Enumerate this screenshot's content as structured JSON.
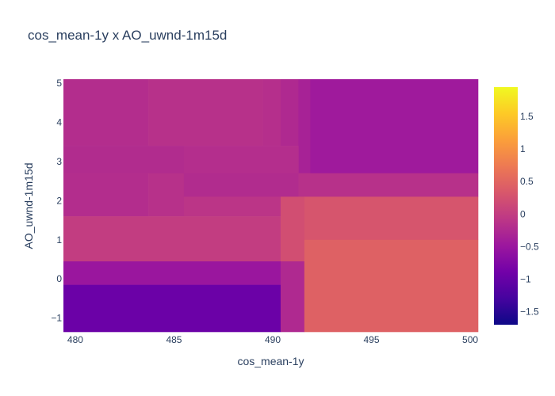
{
  "chart_data": {
    "type": "heatmap",
    "title": "cos_mean-1y x AO_uwnd-1m15d",
    "xlabel": "cos_mean-1y",
    "ylabel": "AO_uwnd-1m15d",
    "xlim": [
      479.4,
      500.4
    ],
    "ylim": [
      -1.35,
      5.1
    ],
    "x_ticks": [
      {
        "value": 480,
        "label": "480"
      },
      {
        "value": 485,
        "label": "485"
      },
      {
        "value": 490,
        "label": "490"
      },
      {
        "value": 495,
        "label": "495"
      },
      {
        "value": 500,
        "label": "500"
      }
    ],
    "y_ticks": [
      {
        "value": -1,
        "label": "−1"
      },
      {
        "value": 0,
        "label": "0"
      },
      {
        "value": 1,
        "label": "1"
      },
      {
        "value": 2,
        "label": "2"
      },
      {
        "value": 3,
        "label": "3"
      },
      {
        "value": 4,
        "label": "4"
      },
      {
        "value": 5,
        "label": "5"
      }
    ],
    "cells": [
      {
        "x": [
          479.4,
          483.7
        ],
        "y": [
          3.4,
          5.1
        ],
        "value": -0.2
      },
      {
        "x": [
          483.7,
          489.5
        ],
        "y": [
          3.4,
          5.1
        ],
        "value": -0.15
      },
      {
        "x": [
          489.5,
          490.4
        ],
        "y": [
          3.4,
          5.1
        ],
        "value": -0.18
      },
      {
        "x": [
          490.4,
          491.3
        ],
        "y": [
          3.4,
          5.1
        ],
        "value": -0.25
      },
      {
        "x": [
          491.3,
          491.9
        ],
        "y": [
          2.7,
          5.1
        ],
        "value": -0.35
      },
      {
        "x": [
          491.9,
          500.4
        ],
        "y": [
          2.7,
          5.1
        ],
        "value": -0.45
      },
      {
        "x": [
          479.4,
          485.5
        ],
        "y": [
          2.7,
          3.4
        ],
        "value": -0.22
      },
      {
        "x": [
          485.5,
          491.3
        ],
        "y": [
          2.7,
          3.4
        ],
        "value": -0.19
      },
      {
        "x": [
          479.4,
          483.7
        ],
        "y": [
          1.6,
          2.7
        ],
        "value": -0.2
      },
      {
        "x": [
          483.7,
          485.5
        ],
        "y": [
          1.6,
          2.7
        ],
        "value": -0.15
      },
      {
        "x": [
          485.5,
          491.3
        ],
        "y": [
          2.1,
          2.7
        ],
        "value": -0.22
      },
      {
        "x": [
          491.3,
          500.4
        ],
        "y": [
          2.1,
          2.7
        ],
        "value": -0.15
      },
      {
        "x": [
          485.5,
          490.4
        ],
        "y": [
          1.6,
          2.1
        ],
        "value": -0.1
      },
      {
        "x": [
          479.4,
          490.4
        ],
        "y": [
          0.45,
          1.6
        ],
        "value": 0.0
      },
      {
        "x": [
          490.4,
          491.6
        ],
        "y": [
          0.45,
          2.1
        ],
        "value": 0.22
      },
      {
        "x": [
          491.6,
          500.4
        ],
        "y": [
          1.0,
          2.1
        ],
        "value": 0.3
      },
      {
        "x": [
          479.4,
          490.4
        ],
        "y": [
          -0.15,
          0.45
        ],
        "value": -0.5
      },
      {
        "x": [
          479.4,
          490.4
        ],
        "y": [
          -1.35,
          -0.15
        ],
        "value": -0.95
      },
      {
        "x": [
          490.4,
          491.6
        ],
        "y": [
          -1.35,
          0.45
        ],
        "value": -0.25
      },
      {
        "x": [
          491.6,
          500.4
        ],
        "y": [
          -1.35,
          1.0
        ],
        "value": 0.45
      }
    ],
    "colorscale": [
      [
        0.0,
        "#0d0887"
      ],
      [
        0.1111,
        "#46039f"
      ],
      [
        0.2222,
        "#7201a8"
      ],
      [
        0.3333,
        "#9c179e"
      ],
      [
        0.4444,
        "#bd3786"
      ],
      [
        0.5556,
        "#d8576b"
      ],
      [
        0.6667,
        "#ed7953"
      ],
      [
        0.7778,
        "#fb9f3a"
      ],
      [
        0.8889,
        "#fdca26"
      ],
      [
        1.0,
        "#f0f921"
      ]
    ],
    "colorbar": {
      "min": -1.7,
      "max": 1.95,
      "ticks": [
        {
          "value": 1.5,
          "label": "1.5"
        },
        {
          "value": 1,
          "label": "1"
        },
        {
          "value": 0.5,
          "label": "0.5"
        },
        {
          "value": 0,
          "label": "0"
        },
        {
          "value": -0.5,
          "label": "−0.5"
        },
        {
          "value": -1,
          "label": "−1"
        },
        {
          "value": -1.5,
          "label": "−1.5"
        }
      ]
    },
    "grid": false
  }
}
